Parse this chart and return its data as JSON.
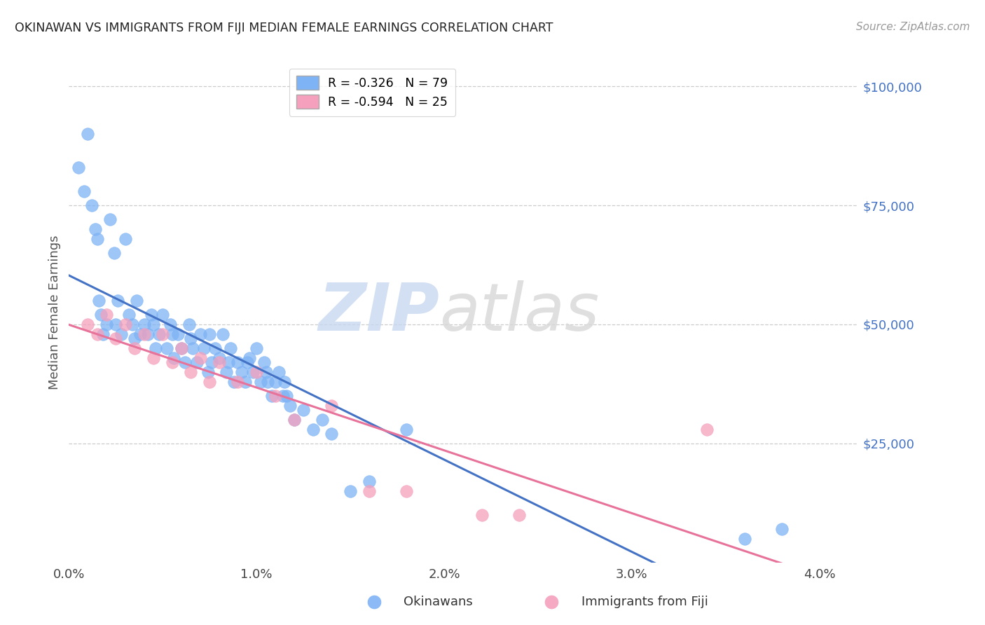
{
  "title": "OKINAWAN VS IMMIGRANTS FROM FIJI MEDIAN FEMALE EARNINGS CORRELATION CHART",
  "source": "Source: ZipAtlas.com",
  "ylabel": "Median Female Earnings",
  "legend_okinawan": "R = -0.326   N = 79",
  "legend_fiji": "R = -0.594   N = 25",
  "legend_label_okinawan": "Okinawans",
  "legend_label_fiji": "Immigrants from Fiji",
  "blue_color": "#7EB3F5",
  "pink_color": "#F5A0BC",
  "trendline_blue": "#4472C4",
  "trendline_pink": "#E8739A",
  "watermark_zip": "ZIP",
  "watermark_atlas": "atlas",
  "xlim": [
    0.0,
    0.042
  ],
  "ylim": [
    0,
    105000
  ],
  "yticks": [
    0,
    25000,
    50000,
    75000,
    100000
  ],
  "xticks": [
    0.0,
    0.01,
    0.02,
    0.03,
    0.04
  ],
  "xtick_labels": [
    "0.0%",
    "1.0%",
    "2.0%",
    "3.0%",
    "4.0%"
  ],
  "right_ytick_labels": [
    "$25,000",
    "$50,000",
    "$75,000",
    "$100,000"
  ],
  "right_ytick_values": [
    25000,
    50000,
    75000,
    100000
  ],
  "background_color": "#FFFFFF",
  "okinawan_x": [
    0.0005,
    0.0008,
    0.001,
    0.0012,
    0.0014,
    0.0015,
    0.0016,
    0.0017,
    0.0018,
    0.002,
    0.0022,
    0.0024,
    0.0025,
    0.0026,
    0.0028,
    0.003,
    0.0032,
    0.0034,
    0.0035,
    0.0036,
    0.0038,
    0.004,
    0.0042,
    0.0044,
    0.0045,
    0.0046,
    0.0048,
    0.005,
    0.0052,
    0.0054,
    0.0055,
    0.0056,
    0.0058,
    0.006,
    0.0062,
    0.0064,
    0.0065,
    0.0066,
    0.0068,
    0.007,
    0.0072,
    0.0074,
    0.0075,
    0.0076,
    0.0078,
    0.008,
    0.0082,
    0.0084,
    0.0085,
    0.0086,
    0.0088,
    0.009,
    0.0092,
    0.0094,
    0.0095,
    0.0096,
    0.0098,
    0.01,
    0.0102,
    0.0104,
    0.0105,
    0.0106,
    0.0108,
    0.011,
    0.0112,
    0.0114,
    0.0115,
    0.0116,
    0.0118,
    0.012,
    0.0125,
    0.013,
    0.0135,
    0.014,
    0.015,
    0.016,
    0.018,
    0.036,
    0.038
  ],
  "okinawan_y": [
    83000,
    78000,
    90000,
    75000,
    70000,
    68000,
    55000,
    52000,
    48000,
    50000,
    72000,
    65000,
    50000,
    55000,
    48000,
    68000,
    52000,
    50000,
    47000,
    55000,
    48000,
    50000,
    48000,
    52000,
    50000,
    45000,
    48000,
    52000,
    45000,
    50000,
    48000,
    43000,
    48000,
    45000,
    42000,
    50000,
    47000,
    45000,
    42000,
    48000,
    45000,
    40000,
    48000,
    42000,
    45000,
    43000,
    48000,
    40000,
    42000,
    45000,
    38000,
    42000,
    40000,
    38000,
    42000,
    43000,
    40000,
    45000,
    38000,
    42000,
    40000,
    38000,
    35000,
    38000,
    40000,
    35000,
    38000,
    35000,
    33000,
    30000,
    32000,
    28000,
    30000,
    27000,
    15000,
    17000,
    28000,
    5000,
    7000
  ],
  "fiji_x": [
    0.001,
    0.0015,
    0.002,
    0.0025,
    0.003,
    0.0035,
    0.004,
    0.0045,
    0.005,
    0.0055,
    0.006,
    0.0065,
    0.007,
    0.0075,
    0.008,
    0.009,
    0.01,
    0.011,
    0.012,
    0.014,
    0.016,
    0.018,
    0.022,
    0.024,
    0.034
  ],
  "fiji_y": [
    50000,
    48000,
    52000,
    47000,
    50000,
    45000,
    48000,
    43000,
    48000,
    42000,
    45000,
    40000,
    43000,
    38000,
    42000,
    38000,
    40000,
    35000,
    30000,
    33000,
    15000,
    15000,
    10000,
    10000,
    28000
  ]
}
